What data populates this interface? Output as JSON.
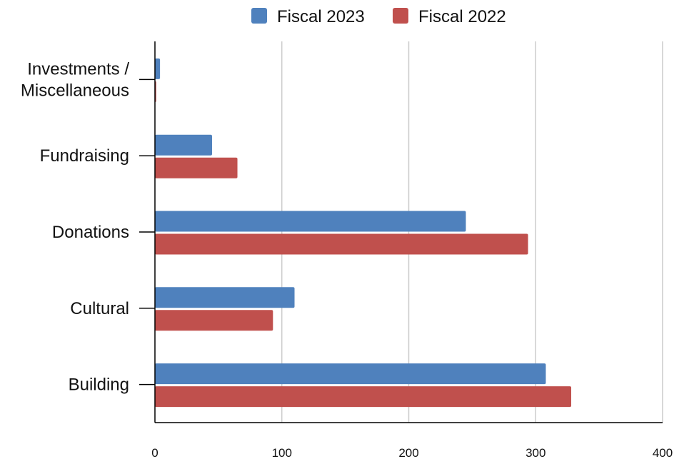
{
  "chart_data": {
    "type": "bar",
    "orientation": "horizontal",
    "categories": [
      "Investments /\nMiscellaneous",
      "Fundraising",
      "Donations",
      "Cultural",
      "Building"
    ],
    "series": [
      {
        "name": "Fiscal 2023",
        "color": "#4f81bd",
        "values": [
          4,
          45,
          245,
          110,
          308
        ]
      },
      {
        "name": "Fiscal 2022",
        "color": "#c0504d",
        "values": [
          1,
          65,
          294,
          93,
          328
        ]
      }
    ],
    "xlim": [
      0,
      400
    ],
    "xticks": [
      0,
      100,
      200,
      300,
      400
    ],
    "grid": true,
    "legend_position": "top"
  }
}
